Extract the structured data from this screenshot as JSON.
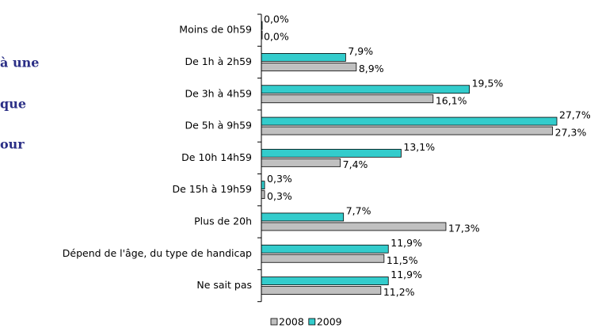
{
  "chart_data": {
    "type": "bar",
    "orientation": "horizontal",
    "annotations": [
      "à une",
      "que",
      "our"
    ],
    "categories": [
      "Moins de 0h59",
      "De 1h à 2h59",
      "De 3h à 4h59",
      "De 5h à 9h59",
      "De 10h  14h59",
      "De 15h à 19h59",
      "Plus de 20h",
      "Dépend de l'âge, du type de handicap",
      "Ne sait pas"
    ],
    "series": [
      {
        "name": "2008",
        "color": "#c0c0c0",
        "values": [
          0,
          8.9,
          16.1,
          27.3,
          7.4,
          0.3,
          17.3,
          11.5,
          11.2
        ],
        "value_labels": [
          "0,0%",
          "8,9%",
          "16,1%",
          "27,3%",
          "7,4%",
          "0,3%",
          "17,3%",
          "11,5%",
          "11,2%"
        ]
      },
      {
        "name": "2009",
        "color": "#33cccc",
        "values": [
          0,
          7.9,
          19.5,
          27.7,
          13.1,
          0.3,
          7.7,
          11.9,
          11.9
        ],
        "value_labels": [
          "0,0%",
          "7,9%",
          "19,5%",
          "27,7%",
          "13,1%",
          "0,3%",
          "7,7%",
          "11,9%",
          "11,9%"
        ]
      }
    ],
    "xlim": [
      0,
      30
    ]
  }
}
